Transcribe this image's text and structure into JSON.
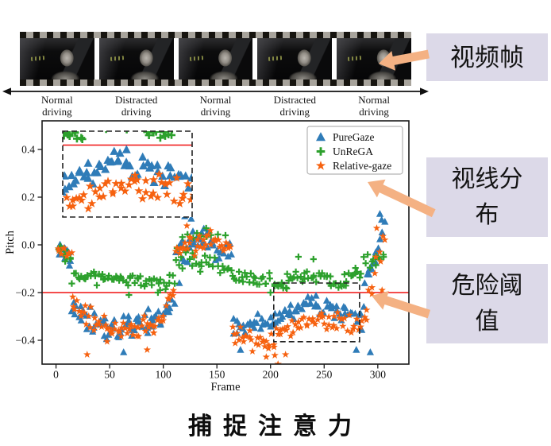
{
  "film_strip": {
    "frame_count": 5
  },
  "timeline": {
    "labels": [
      {
        "line1": "Normal",
        "line2": "driving"
      },
      {
        "line1": "Distracted",
        "line2": "driving"
      },
      {
        "line1": "Normal",
        "line2": "driving"
      },
      {
        "line1": "Distracted",
        "line2": "driving"
      },
      {
        "line1": "Normal",
        "line2": "driving"
      }
    ]
  },
  "annotations": {
    "video_frame": {
      "text": "视频帧"
    },
    "gaze_distribution": {
      "text": "视线分\n布"
    },
    "danger_threshold": {
      "text": "危险阈\n值"
    },
    "box_bg": "#dcd9e8",
    "arrow_color": "#f4b183"
  },
  "caption": {
    "text": "捕捉注意力"
  },
  "chart_data": {
    "type": "scatter",
    "title": "",
    "xlabel": "Frame",
    "ylabel": "Pitch",
    "xlim": [
      -13,
      329
    ],
    "ylim": [
      -0.5,
      0.52
    ],
    "x_ticks": [
      0,
      50,
      100,
      150,
      200,
      250,
      300
    ],
    "y_ticks": [
      0.4,
      0.2,
      0.0,
      -0.2,
      -0.4
    ],
    "grid": false,
    "legend_position": "upper right",
    "threshold_line": {
      "y": -0.2,
      "color": "#f01010"
    },
    "zoom_region": {
      "x0": 203,
      "x1": 283,
      "y0": -0.406,
      "y1": -0.16
    },
    "seed": 12345,
    "series": [
      {
        "name": "PureGaze",
        "marker": "triangle",
        "color": "#2f7cb8",
        "segments": [
          [
            2,
            14,
            10,
            -0.03,
            -0.06,
            0.05
          ],
          [
            15,
            45,
            22,
            -0.26,
            -0.36,
            0.06
          ],
          [
            45,
            85,
            28,
            -0.36,
            -0.33,
            0.06
          ],
          [
            85,
            110,
            18,
            -0.33,
            -0.24,
            0.06
          ],
          [
            112,
            136,
            20,
            -0.03,
            0.02,
            0.08
          ],
          [
            136,
            163,
            18,
            0.02,
            -0.05,
            0.07
          ],
          [
            165,
            202,
            26,
            -0.34,
            -0.32,
            0.055
          ],
          [
            202,
            242,
            28,
            -0.32,
            -0.235,
            0.05
          ],
          [
            242,
            285,
            28,
            -0.25,
            -0.31,
            0.055
          ],
          [
            287,
            306,
            14,
            -0.22,
            0.1,
            0.055
          ]
        ],
        "outliers": [
          [
            120,
            0.12
          ],
          [
            126,
            0.11
          ],
          [
            115,
            -0.16
          ],
          [
            172,
            -0.44
          ],
          [
            63,
            -0.45
          ],
          [
            280,
            -0.44
          ],
          [
            293,
            -0.45
          ],
          [
            302,
            0.13
          ]
        ]
      },
      {
        "name": "UnReGA",
        "marker": "plus",
        "color": "#2ca02c",
        "segments": [
          [
            2,
            14,
            9,
            -0.02,
            -0.06,
            0.04
          ],
          [
            15,
            110,
            58,
            -0.13,
            -0.16,
            0.04
          ],
          [
            112,
            136,
            16,
            -0.05,
            -0.08,
            0.05
          ],
          [
            118,
            150,
            8,
            0.03,
            0.05,
            0.025
          ],
          [
            136,
            163,
            14,
            -0.08,
            -0.1,
            0.045
          ],
          [
            165,
            200,
            22,
            -0.13,
            -0.15,
            0.035
          ],
          [
            203,
            215,
            10,
            -0.165,
            -0.18,
            0.015
          ],
          [
            215,
            255,
            24,
            -0.14,
            -0.13,
            0.035
          ],
          [
            255,
            270,
            10,
            -0.165,
            -0.17,
            0.012
          ],
          [
            270,
            285,
            10,
            -0.13,
            -0.12,
            0.03
          ],
          [
            287,
            306,
            12,
            -0.08,
            -0.03,
            0.035
          ]
        ],
        "outliers": [
          [
            140,
            0.07
          ],
          [
            158,
            0.04
          ],
          [
            226,
            -0.05
          ],
          [
            240,
            -0.06
          ],
          [
            200,
            -0.2
          ],
          [
            68,
            -0.21
          ],
          [
            95,
            -0.2
          ]
        ]
      },
      {
        "name": "Relative-gaze",
        "marker": "star",
        "color": "#f6610f",
        "segments": [
          [
            2,
            14,
            9,
            -0.01,
            -0.04,
            0.04
          ],
          [
            15,
            50,
            24,
            -0.24,
            -0.36,
            0.06
          ],
          [
            50,
            90,
            28,
            -0.36,
            -0.34,
            0.05
          ],
          [
            90,
            110,
            14,
            -0.34,
            -0.2,
            0.06
          ],
          [
            112,
            140,
            20,
            -0.02,
            0.0,
            0.06
          ],
          [
            140,
            163,
            16,
            0.03,
            -0.02,
            0.05
          ],
          [
            165,
            205,
            28,
            -0.38,
            -0.42,
            0.055
          ],
          [
            205,
            250,
            28,
            -0.37,
            -0.3,
            0.05
          ],
          [
            250,
            285,
            22,
            -0.32,
            -0.35,
            0.05
          ],
          [
            287,
            306,
            12,
            -0.32,
            0.05,
            0.06
          ]
        ],
        "outliers": [
          [
            29,
            -0.46
          ],
          [
            85,
            -0.44
          ],
          [
            196,
            -0.47
          ],
          [
            207,
            -0.5
          ],
          [
            214,
            -0.46
          ],
          [
            122,
            0.08
          ],
          [
            299,
            0.07
          ],
          [
            304,
            -0.19
          ]
        ]
      }
    ]
  }
}
